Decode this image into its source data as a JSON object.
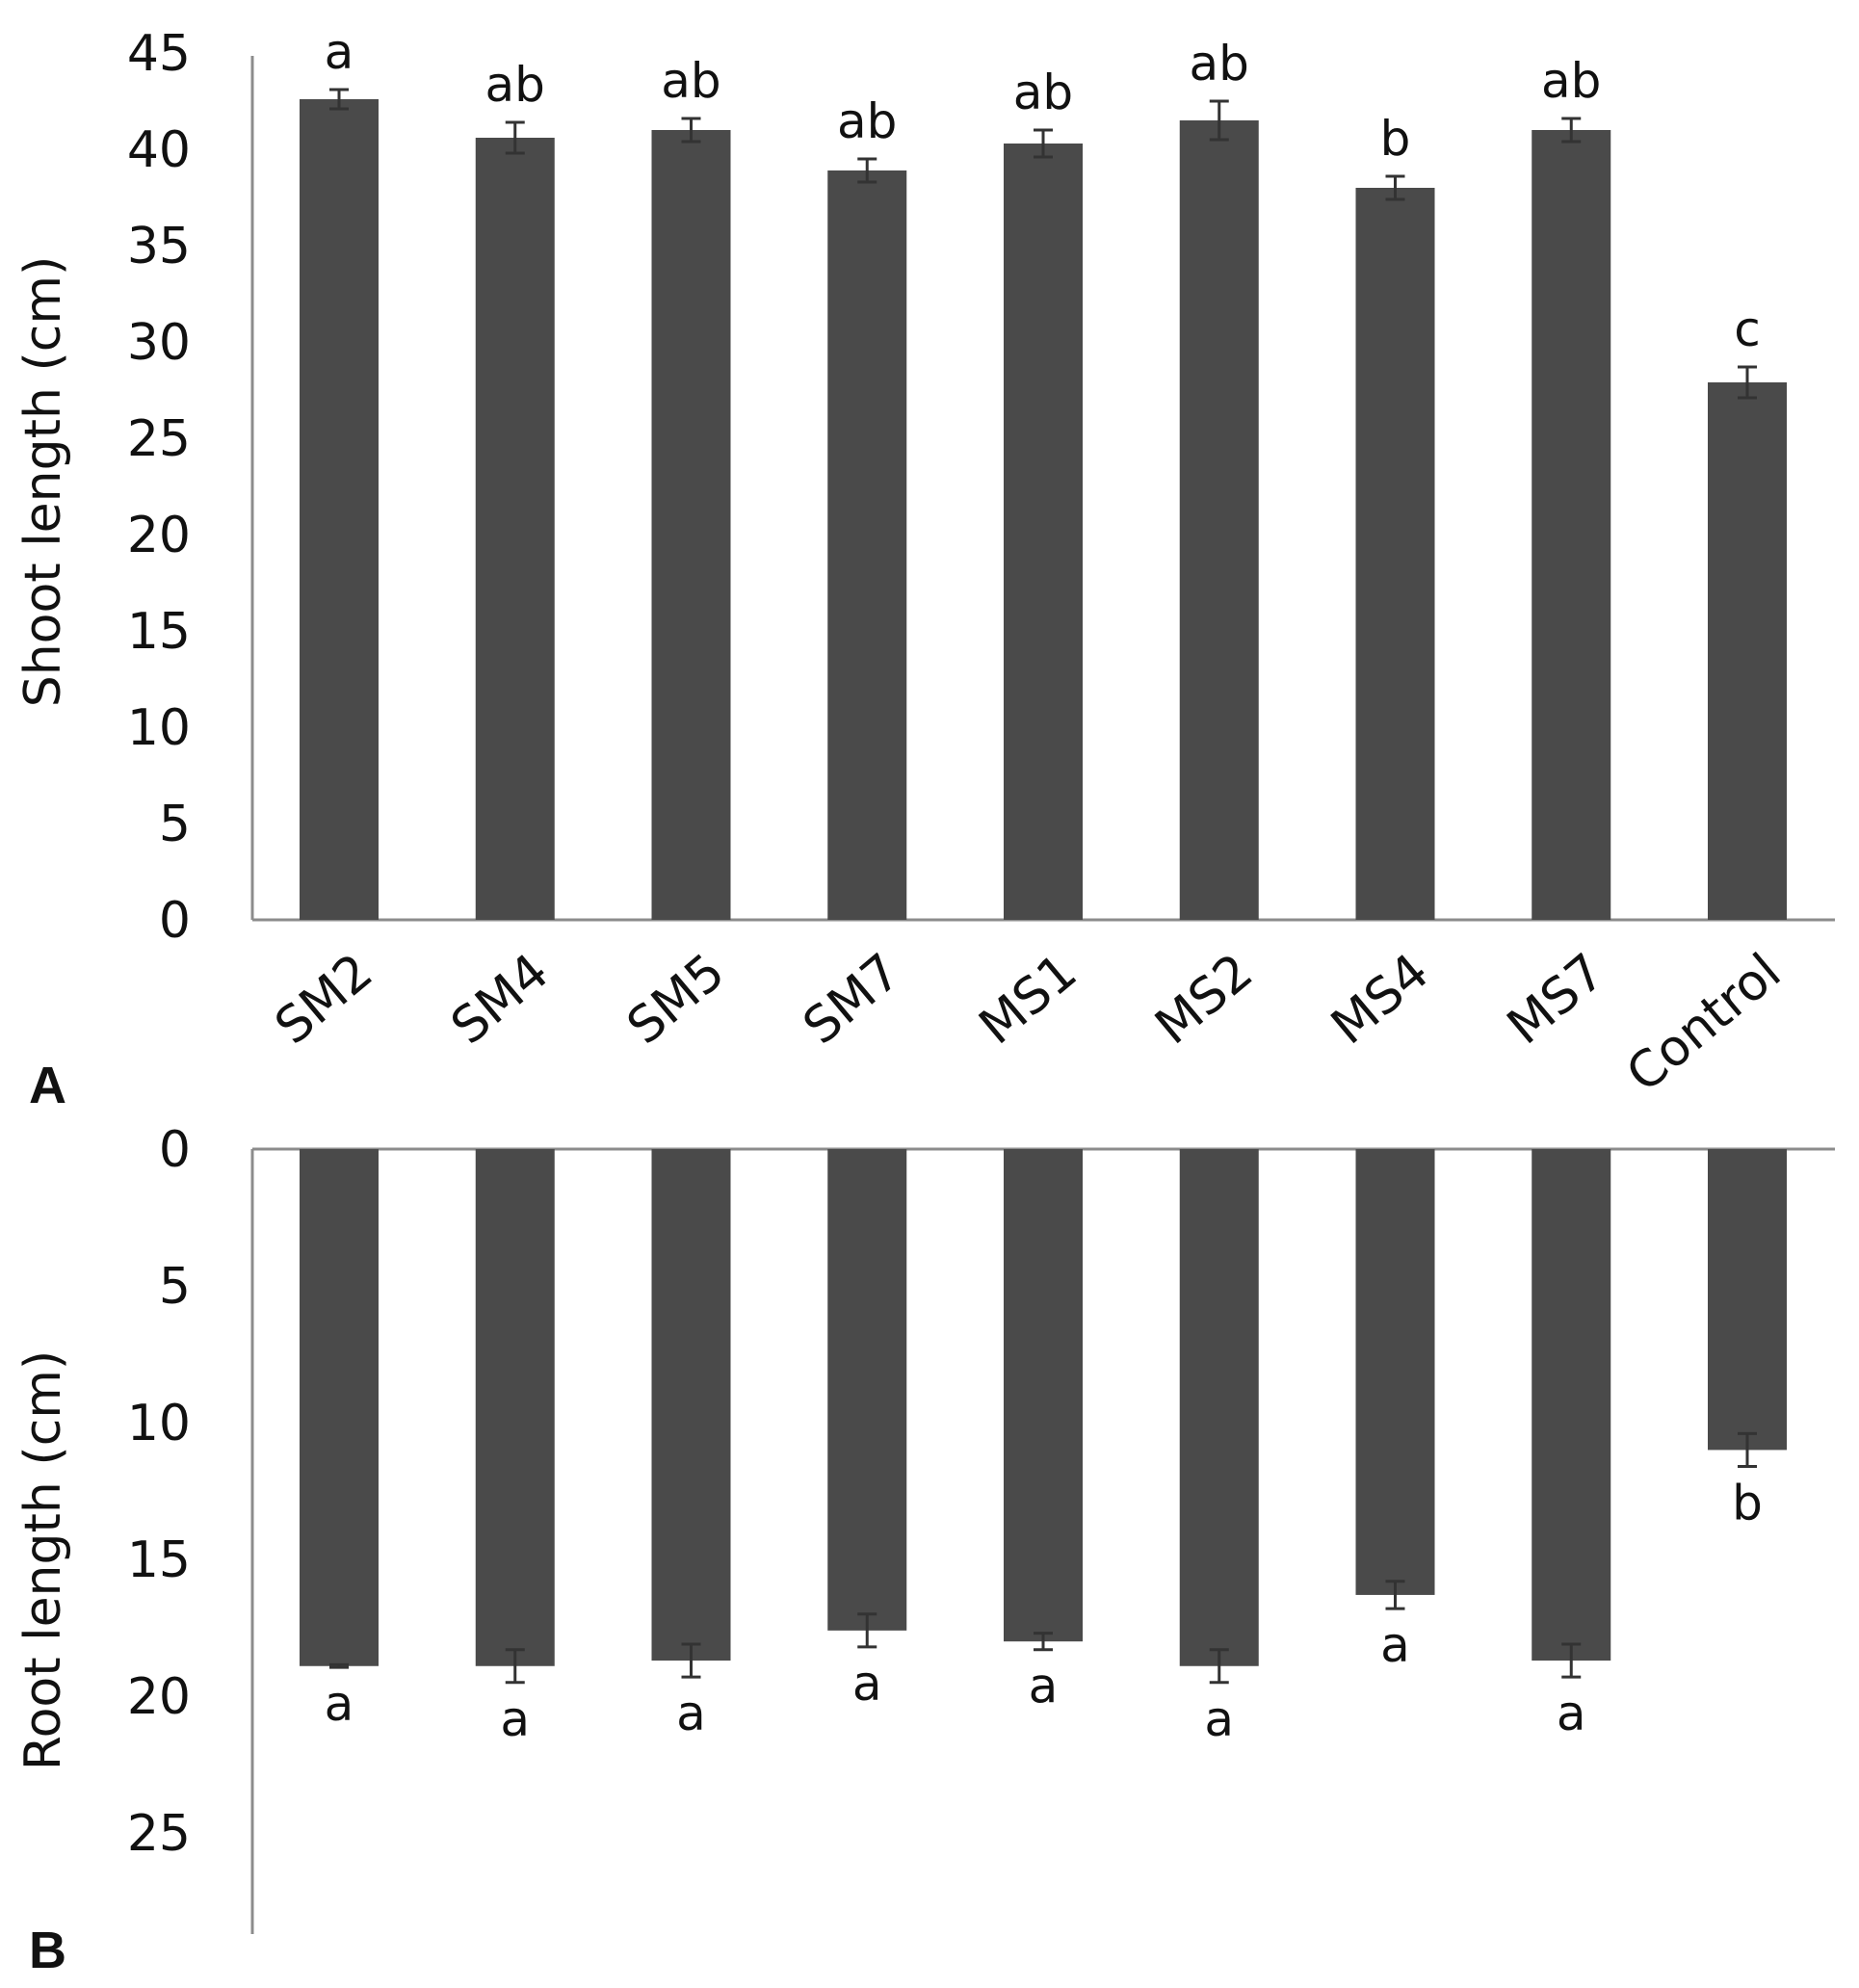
{
  "colors": {
    "bar": "#4a4a4a",
    "axis": "#8c8c8c",
    "errorbar": "#333333"
  },
  "chart_data": [
    {
      "panel_label": "A",
      "type": "bar",
      "categories": [
        "SM2",
        "SM4",
        "SM5",
        "SM7",
        "MS1",
        "MS2",
        "MS4",
        "MS7",
        "Control"
      ],
      "values": [
        42.6,
        40.6,
        41.0,
        38.9,
        40.3,
        41.5,
        38.0,
        41.0,
        27.9
      ],
      "errors": [
        0.5,
        0.8,
        0.6,
        0.6,
        0.7,
        1.0,
        0.6,
        0.6,
        0.8
      ],
      "significance_letters": [
        "a",
        "ab",
        "ab",
        "ab",
        "ab",
        "ab",
        "b",
        "ab",
        "c"
      ],
      "ylabel": "Shoot length (cm)",
      "ylim": [
        0,
        45
      ],
      "yticks": [
        "0",
        "5",
        "10",
        "15",
        "20",
        "25",
        "30",
        "35",
        "40",
        "45"
      ],
      "grid": false
    },
    {
      "panel_label": "B",
      "type": "bar",
      "categories": [
        "SM2",
        "SM4",
        "SM5",
        "SM7",
        "MS1",
        "MS2",
        "MS4",
        "MS7",
        "Control"
      ],
      "values": [
        18.9,
        18.9,
        18.7,
        17.6,
        18.0,
        18.9,
        16.3,
        18.7,
        11.0
      ],
      "errors": [
        0.05,
        0.6,
        0.6,
        0.6,
        0.3,
        0.6,
        0.5,
        0.6,
        0.6
      ],
      "significance_letters": [
        "a",
        "a",
        "a",
        "a",
        "a",
        "a",
        "a",
        "a",
        "b"
      ],
      "ylabel": "Root length (cm)",
      "ylim": [
        0,
        25
      ],
      "y_axis_inverted": true,
      "yticks": [
        "0",
        "5",
        "10",
        "15",
        "20",
        "25"
      ],
      "grid": false
    }
  ]
}
